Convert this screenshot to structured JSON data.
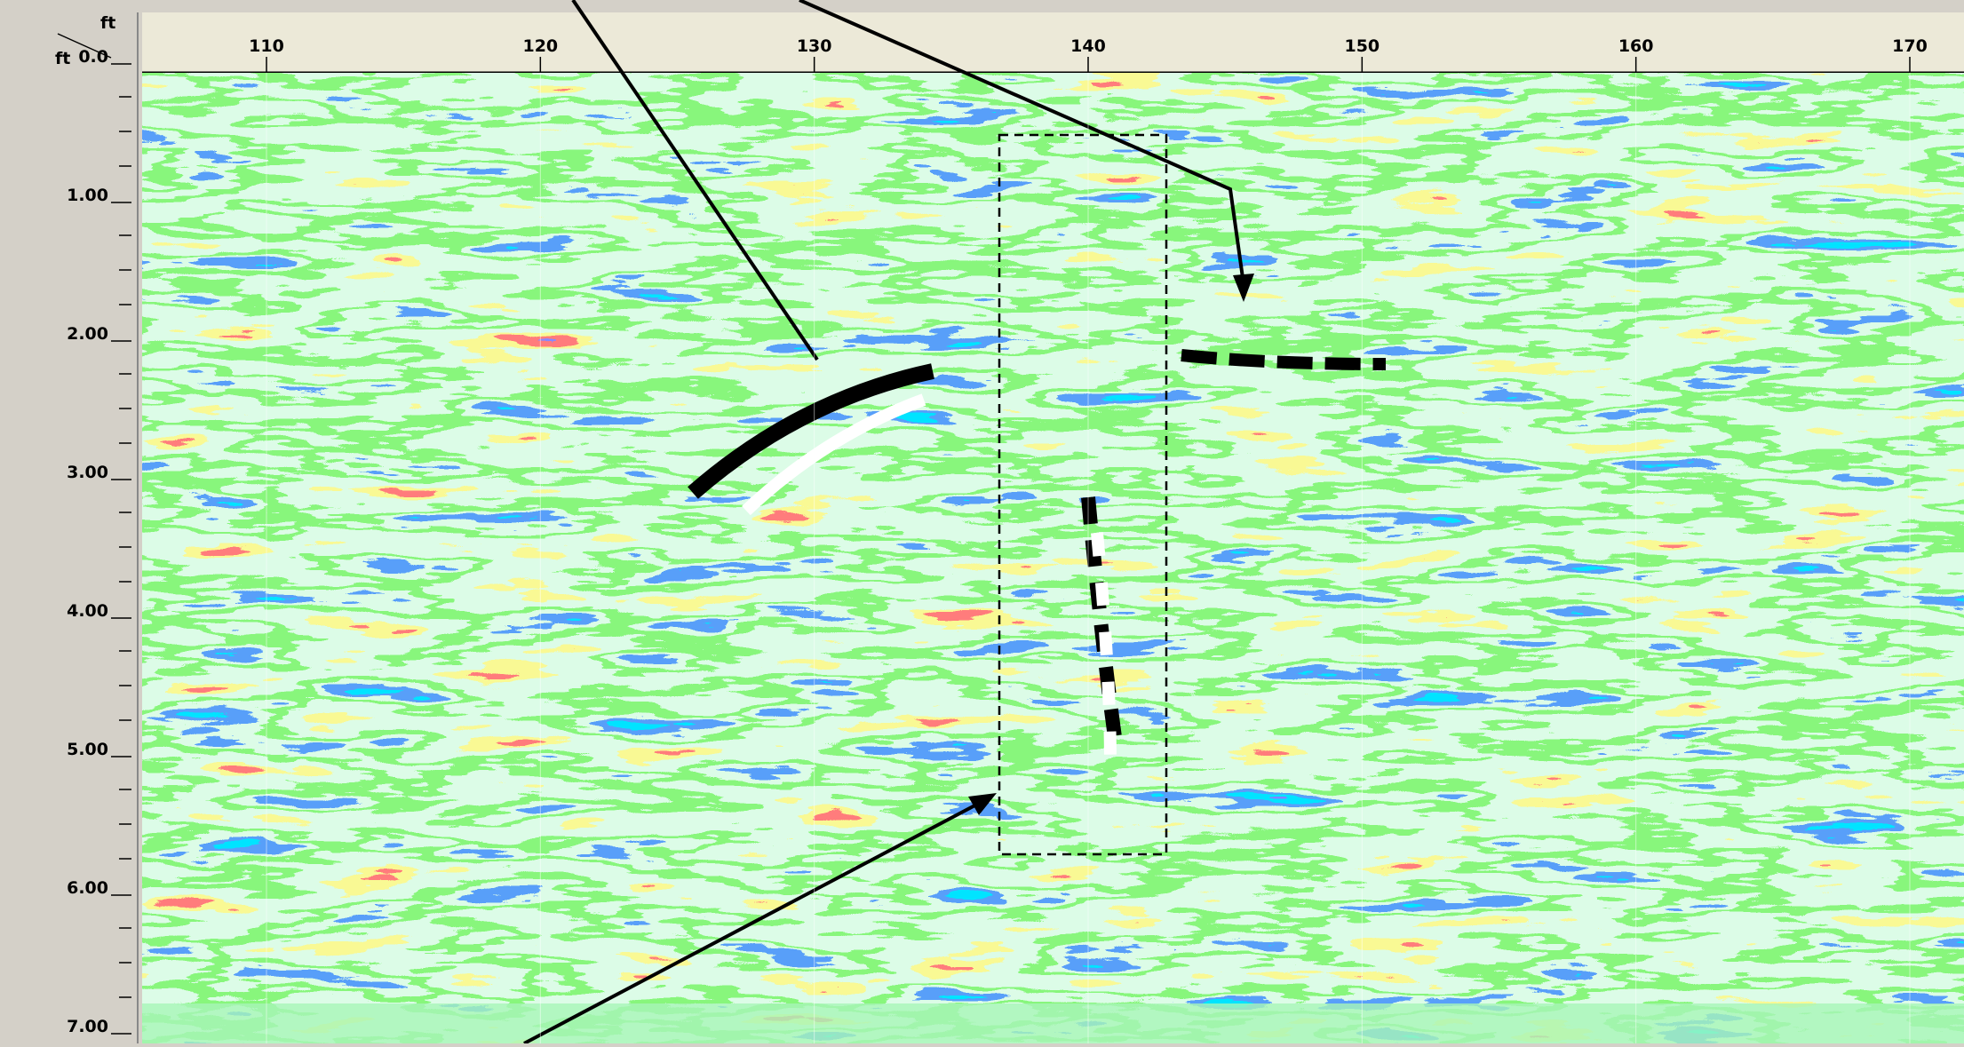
{
  "axes": {
    "x_unit": "ft",
    "y_unit": "ft",
    "x_ticks": [
      110,
      120,
      130,
      140,
      150,
      160,
      170
    ],
    "y_ticks": [
      {
        "value": 0,
        "label": "0.0"
      },
      {
        "value": 1,
        "label": "1.00"
      },
      {
        "value": 2,
        "label": "2.00"
      },
      {
        "value": 3,
        "label": "3.00"
      },
      {
        "value": 4,
        "label": "4.00"
      },
      {
        "value": 5,
        "label": "5.00"
      },
      {
        "value": 6,
        "label": "6.00"
      },
      {
        "value": 7,
        "label": "7.00"
      }
    ]
  }
}
